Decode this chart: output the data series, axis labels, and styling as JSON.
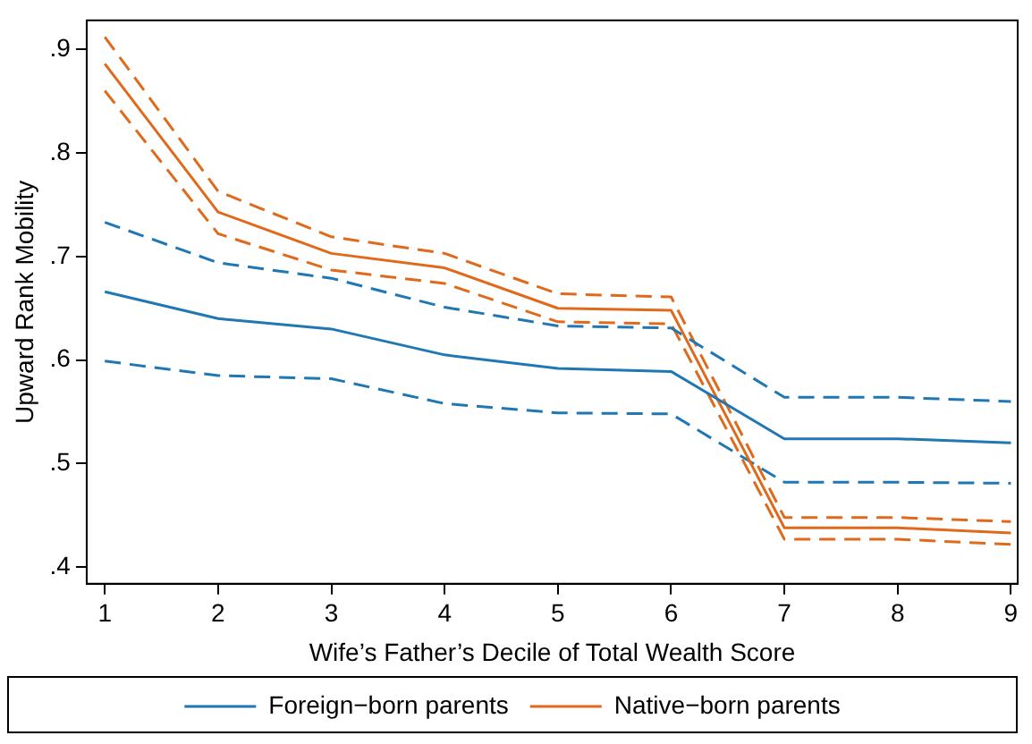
{
  "chart_data": {
    "type": "line",
    "xlabel": "Wife’s Father’s Decile of Total Wealth Score",
    "ylabel": "Upward Rank Mobility",
    "x": [
      1,
      2,
      3,
      4,
      5,
      6,
      7,
      8,
      9
    ],
    "series": [
      {
        "name": "Foreign−born parents",
        "color": "#1f77b4",
        "values": [
          0.666,
          0.64,
          0.63,
          0.605,
          0.592,
          0.589,
          0.524,
          0.524,
          0.52
        ]
      },
      {
        "name": "Native−born parents",
        "color": "#e06a1b",
        "values": [
          0.886,
          0.743,
          0.703,
          0.689,
          0.65,
          0.648,
          0.438,
          0.438,
          0.433
        ]
      },
      {
        "color": "#1f77b4",
        "line_style": "dashed",
        "values": [
          0.733,
          0.694,
          0.679,
          0.651,
          0.633,
          0.631,
          0.564,
          0.564,
          0.56
        ]
      },
      {
        "color": "#1f77b4",
        "line_style": "dashed",
        "values": [
          0.599,
          0.585,
          0.582,
          0.558,
          0.549,
          0.548,
          0.482,
          0.482,
          0.481
        ]
      },
      {
        "color": "#e06a1b",
        "line_style": "dashed",
        "values": [
          0.912,
          0.763,
          0.719,
          0.703,
          0.664,
          0.661,
          0.448,
          0.448,
          0.444
        ]
      },
      {
        "color": "#e06a1b",
        "line_style": "dashed",
        "values": [
          0.86,
          0.722,
          0.687,
          0.674,
          0.637,
          0.635,
          0.427,
          0.427,
          0.422
        ]
      }
    ],
    "xlim": [
      0.84,
      9.06
    ],
    "xticks": [
      1,
      2,
      3,
      4,
      5,
      6,
      7,
      8,
      9
    ],
    "ylim": [
      0.384,
      0.928
    ],
    "yticks": [
      {
        "value": 0.4,
        "label": ".4"
      },
      {
        "value": 0.5,
        "label": ".5"
      },
      {
        "value": 0.6,
        "label": ".6"
      },
      {
        "value": 0.7,
        "label": ".7"
      },
      {
        "value": 0.8,
        "label": ".8"
      },
      {
        "value": 0.9,
        "label": ".9"
      }
    ],
    "grid": false,
    "legend": "bottom",
    "marker": "none",
    "line_style": "solid"
  }
}
